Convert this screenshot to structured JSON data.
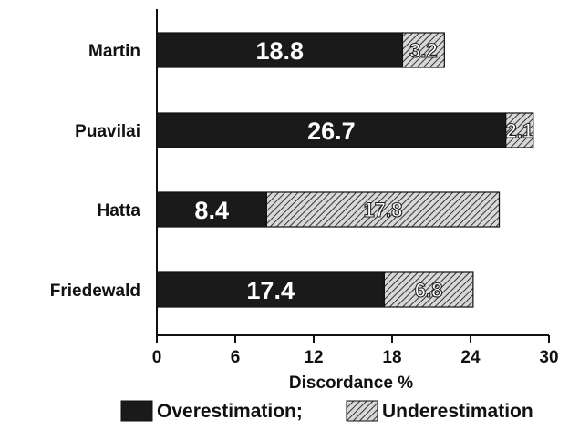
{
  "chart_data": {
    "type": "bar",
    "orientation": "horizontal",
    "stacked": true,
    "categories": [
      "Martin",
      "Puavilai",
      "Hatta",
      "Friedewald"
    ],
    "series": [
      {
        "name": "Overestimation;",
        "values": [
          18.8,
          26.7,
          8.4,
          17.4
        ],
        "color": "#1a1a1a",
        "pattern": "solid"
      },
      {
        "name": "Underestimation",
        "values": [
          3.2,
          2.1,
          17.8,
          6.8
        ],
        "color": "#8a8a8a",
        "pattern": "diagonal-hatch"
      }
    ],
    "value_labels": {
      "Overestimation;": [
        "18.8",
        "26.7",
        "8.4",
        "17.4"
      ],
      "Underestimation": [
        "3.2",
        "2.1",
        "17.8",
        "6.8"
      ]
    },
    "xlabel": "Discordance %",
    "ylabel": "",
    "xlim": [
      0,
      30
    ],
    "xticks": [
      0,
      6,
      12,
      18,
      24,
      30
    ],
    "grid": false,
    "legend": {
      "position": "bottom",
      "entries": [
        "Overestimation;",
        "Underestimation"
      ]
    }
  }
}
